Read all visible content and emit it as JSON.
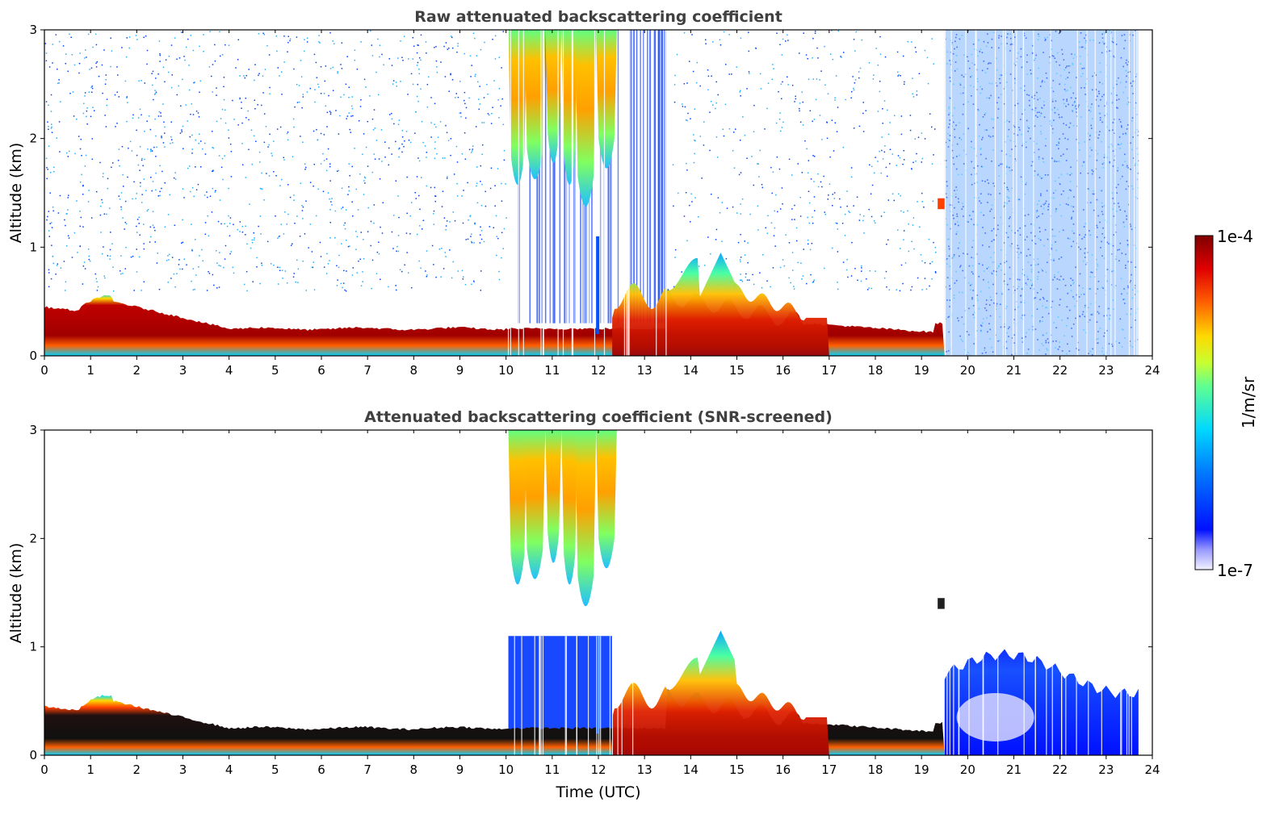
{
  "chart_data": [
    {
      "type": "heatmap",
      "title": "Raw attenuated backscattering coefficient",
      "xlabel": "",
      "ylabel": "Altitude (km)",
      "xlim": [
        0,
        24
      ],
      "ylim": [
        0,
        3
      ],
      "x_ticks": [
        "0",
        "1",
        "2",
        "3",
        "4",
        "5",
        "6",
        "7",
        "8",
        "9",
        "10",
        "11",
        "12",
        "13",
        "14",
        "15",
        "16",
        "17",
        "18",
        "19",
        "20",
        "21",
        "22",
        "23",
        "24"
      ],
      "y_ticks": [
        "0",
        "1",
        "2",
        "3"
      ],
      "grid": false,
      "data_end_time": 23.7,
      "features": [
        {
          "name": "boundary layer aerosol",
          "time": [
            0,
            19.5
          ],
          "altitude_top": [
            0.55,
            0.3
          ]
        },
        {
          "name": "high cloud",
          "time": [
            10.0,
            12.4
          ],
          "altitude": [
            1.2,
            3.0
          ]
        },
        {
          "name": "elevated aerosol 14-16 UTC",
          "time": [
            13.5,
            16.5
          ],
          "altitude_top": 1.0
        },
        {
          "name": "noisy daytime signal",
          "time": [
            19.5,
            23.7
          ],
          "altitude": [
            0,
            3.0
          ]
        }
      ]
    },
    {
      "type": "heatmap",
      "title": "Attenuated backscattering coefficient (SNR-screened)",
      "xlabel": "Time (UTC)",
      "ylabel": "Altitude (km)",
      "xlim": [
        0,
        24
      ],
      "ylim": [
        0,
        3
      ],
      "x_ticks": [
        "0",
        "1",
        "2",
        "3",
        "4",
        "5",
        "6",
        "7",
        "8",
        "9",
        "10",
        "11",
        "12",
        "13",
        "14",
        "15",
        "16",
        "17",
        "18",
        "19",
        "20",
        "21",
        "22",
        "23",
        "24"
      ],
      "y_ticks": [
        "0",
        "1",
        "2",
        "3"
      ],
      "grid": false,
      "data_end_time": 23.7,
      "features": [
        {
          "name": "boundary layer aerosol",
          "time": [
            0,
            19.5
          ],
          "altitude_top": [
            0.55,
            0.3
          ]
        },
        {
          "name": "high cloud",
          "time": [
            10.0,
            12.4
          ],
          "altitude": [
            1.2,
            3.0
          ]
        },
        {
          "name": "aerosol plume near 14.6 UTC",
          "time": [
            13.5,
            16.5
          ],
          "altitude_top": 1.2
        },
        {
          "name": "afternoon mixed layer",
          "time": [
            19.5,
            23.7
          ],
          "altitude_top": 1.0
        }
      ]
    }
  ],
  "colorbar": {
    "label": "1/m/sr",
    "max_label": "1e-4",
    "min_label": "1e-7",
    "scale": "log",
    "range": [
      1e-07,
      0.0001
    ],
    "colormap": [
      "#f2f2ff",
      "#0010ff",
      "#00d8ff",
      "#b0ff40",
      "#ffd800",
      "#ff2000",
      "#800000"
    ]
  }
}
